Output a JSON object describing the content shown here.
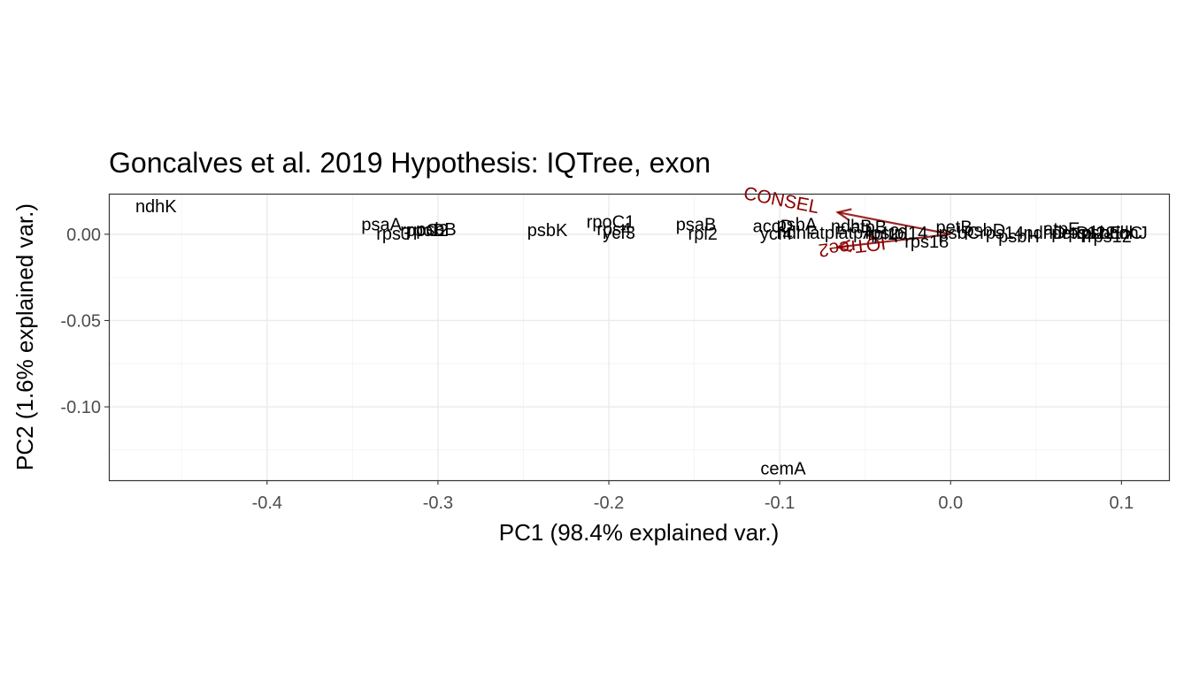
{
  "chart_data": {
    "type": "scatter",
    "title": "Goncalves et al. 2019 Hypothesis: IQTree,  exon",
    "xlabel": "PC1 (98.4% explained var.)",
    "ylabel": "PC2 (1.6% explained var.)",
    "xlim": [
      -0.4926,
      0.1283
    ],
    "ylim": [
      -0.1425,
      0.0235
    ],
    "x_ticks": [
      -0.4,
      -0.3,
      -0.2,
      -0.1,
      0.0,
      0.1
    ],
    "x_tick_labels": [
      "-0.4",
      "-0.3",
      "-0.2",
      "-0.1",
      "0.0",
      "0.1"
    ],
    "y_ticks": [
      0.0,
      -0.05,
      -0.1
    ],
    "y_tick_labels": [
      "0.00",
      "-0.05",
      "-0.10"
    ],
    "grid": true,
    "points": [
      {
        "label": "ndhK",
        "x": -0.465,
        "y": 0.0155
      },
      {
        "label": "psaA",
        "x": -0.333,
        "y": 0.005
      },
      {
        "label": "rps3",
        "x": -0.326,
        "y": -0.0005
      },
      {
        "label": "rpoB",
        "x": -0.307,
        "y": 0.0015
      },
      {
        "label": "psbB",
        "x": -0.301,
        "y": 0.002
      },
      {
        "label": "rpoC2",
        "x": -0.308,
        "y": 0.0015
      },
      {
        "label": "psbK",
        "x": -0.236,
        "y": 0.0015
      },
      {
        "label": "rpoC1",
        "x": -0.199,
        "y": 0.0065
      },
      {
        "label": "rps4",
        "x": -0.197,
        "y": 0.002
      },
      {
        "label": "ycf3",
        "x": -0.194,
        "y": 0.0
      },
      {
        "label": "psaB",
        "x": -0.149,
        "y": 0.005
      },
      {
        "label": "rpl2",
        "x": -0.145,
        "y": -0.0005
      },
      {
        "label": "accD",
        "x": -0.104,
        "y": 0.004
      },
      {
        "label": "psbA",
        "x": -0.09,
        "y": 0.005
      },
      {
        "label": "ycf4",
        "x": -0.102,
        "y": -0.0005
      },
      {
        "label": "ndhF",
        "x": -0.09,
        "y": 0.0
      },
      {
        "label": "atpF",
        "x": -0.072,
        "y": 0.0
      },
      {
        "label": "atpA",
        "x": -0.055,
        "y": 0.0
      },
      {
        "label": "ndhB",
        "x": -0.058,
        "y": 0.004
      },
      {
        "label": "atpB",
        "x": -0.048,
        "y": 0.0035
      },
      {
        "label": "rps2",
        "x": -0.04,
        "y": 0.0
      },
      {
        "label": "rpl16",
        "x": -0.037,
        "y": -0.0005
      },
      {
        "label": "rps18",
        "x": -0.014,
        "y": -0.005
      },
      {
        "label": "petB",
        "x": 0.002,
        "y": 0.0035
      },
      {
        "label": "psbC",
        "x": 0.005,
        "y": 0.0
      },
      {
        "label": "rpl14",
        "x": -0.025,
        "y": 0.0
      },
      {
        "label": "psbD",
        "x": 0.02,
        "y": 0.0015
      },
      {
        "label": "rps14",
        "x": 0.03,
        "y": 0.0
      },
      {
        "label": "psbH",
        "x": 0.04,
        "y": -0.002
      },
      {
        "label": "ndhD",
        "x": 0.055,
        "y": 0.0
      },
      {
        "label": "atpE",
        "x": 0.065,
        "y": 0.0025
      },
      {
        "label": "petD",
        "x": 0.07,
        "y": 0.0
      },
      {
        "label": "rps11",
        "x": 0.078,
        "y": 0.0
      },
      {
        "label": "rpl22",
        "x": 0.085,
        "y": 0.0
      },
      {
        "label": "psbE",
        "x": 0.088,
        "y": 0.0
      },
      {
        "label": "rps12",
        "x": 0.093,
        "y": -0.002
      },
      {
        "label": "ndhC",
        "x": 0.1,
        "y": 0.0
      },
      {
        "label": "ndhJ",
        "x": 0.104,
        "y": 0.0
      },
      {
        "label": "cemA",
        "x": -0.098,
        "y": -0.1365
      }
    ],
    "arrows": [
      {
        "label": "CONSEL",
        "x": -0.066,
        "y": 0.0127
      },
      {
        "label": "IQTree2",
        "x": -0.066,
        "y": -0.0075
      }
    ]
  }
}
